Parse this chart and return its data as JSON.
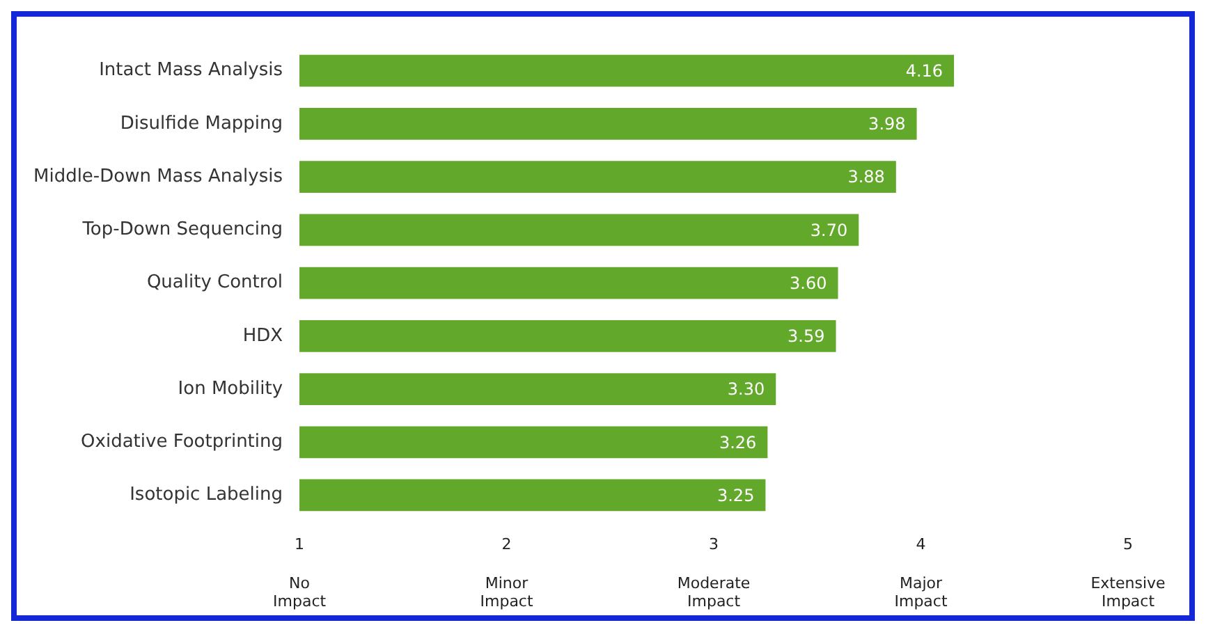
{
  "chart_data": {
    "type": "bar",
    "orientation": "horizontal",
    "categories": [
      "Intact Mass Analysis",
      "Disulfide Mapping",
      "Middle-Down Mass Analysis",
      "Top-Down Sequencing",
      "Quality Control",
      "HDX",
      "Ion Mobility",
      "Oxidative Footprinting",
      "Isotopic Labeling"
    ],
    "values": [
      4.16,
      3.98,
      3.88,
      3.7,
      3.6,
      3.59,
      3.3,
      3.26,
      3.25
    ],
    "value_labels": [
      "4.16",
      "3.98",
      "3.88",
      "3.70",
      "3.60",
      "3.59",
      "3.30",
      "3.26",
      "3.25"
    ],
    "color": "#62a82a",
    "xlim": [
      1,
      5
    ],
    "xticks": [
      1,
      2,
      3,
      4,
      5
    ],
    "annotations": [
      "No Impact",
      "Minor Impact",
      "Moderate Impact",
      "Major Impact",
      "Extensive Impact"
    ],
    "grid": false,
    "legend": false
  }
}
